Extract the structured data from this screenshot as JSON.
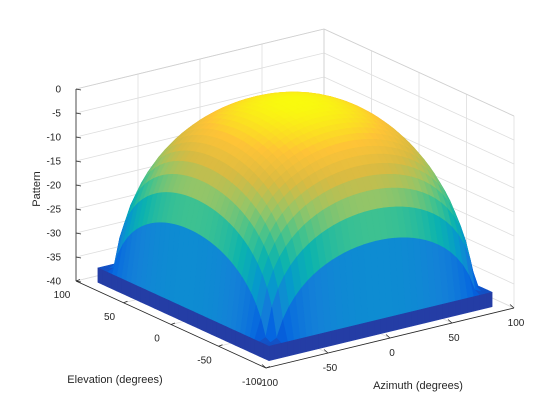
{
  "chart_data": {
    "type": "surface",
    "xlabel": "Azimuth (degrees)",
    "ylabel": "Elevation (degrees)",
    "zlabel": "Pattern",
    "xlim": [
      -100,
      100
    ],
    "ylim": [
      -100,
      100
    ],
    "zlim": [
      -40,
      0
    ],
    "xticks": [
      -100,
      -50,
      0,
      50,
      100
    ],
    "yticks": [
      -100,
      -50,
      0,
      50,
      100
    ],
    "zticks": [
      -40,
      -35,
      -30,
      -25,
      -20,
      -15,
      -10,
      -5,
      0
    ],
    "xtick_labels": [
      "-100",
      "-50",
      "0",
      "50",
      "100"
    ],
    "ytick_labels": [
      "-100",
      "-50",
      "0",
      "50",
      "100"
    ],
    "ztick_labels": [
      "-40",
      "-35",
      "-30",
      "-25",
      "-20",
      "-15",
      "-10",
      "-5",
      "0"
    ],
    "grid": true,
    "box": false,
    "colormap": "parula",
    "surface": {
      "x_range": [
        -90,
        90
      ],
      "y_range": [
        -90,
        90
      ],
      "floor": -37,
      "peak": 0,
      "peak_location": [
        0,
        0
      ],
      "grid_step": 5
    }
  }
}
